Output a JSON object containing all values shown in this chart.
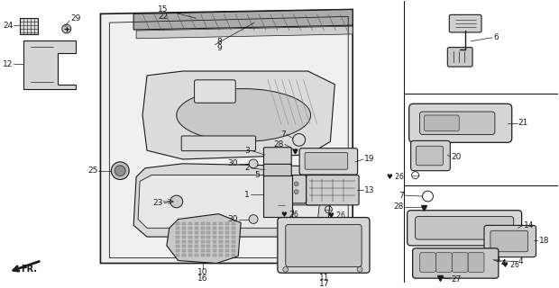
{
  "bg_color": "#ffffff",
  "line_color": "#1a1a1a",
  "fig_width": 6.2,
  "fig_height": 3.2,
  "dpi": 100
}
